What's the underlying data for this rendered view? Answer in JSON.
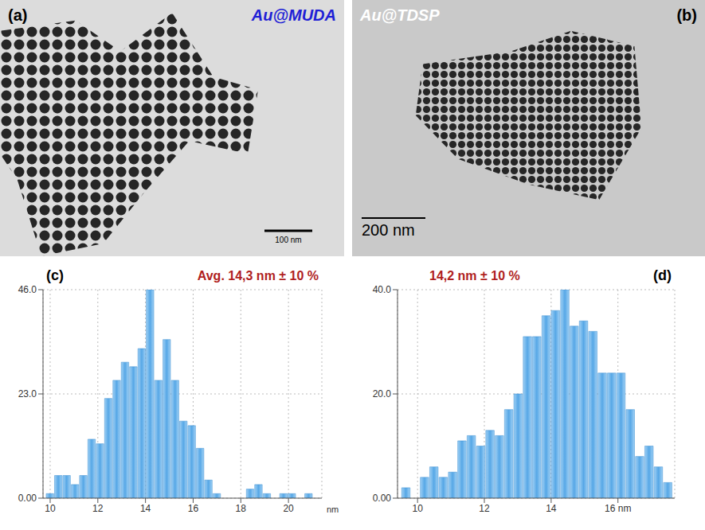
{
  "images": [
    {
      "panel": "(a)",
      "label": "Au@MUDA",
      "scale_bar": "100 nm"
    },
    {
      "panel": "(b)",
      "label": "Au@TDSP",
      "scale_bar": "200 nm"
    }
  ],
  "chart_data": [
    {
      "type": "histogram",
      "panel": "(c)",
      "annotation": "Avg. 14,3 nm ± 10 %",
      "x_label": "nm",
      "color": "#56a7e6",
      "grid": true,
      "bins": [
        9.8,
        10.15,
        10.5,
        10.85,
        11.2,
        11.55,
        11.9,
        12.25,
        12.6,
        12.95,
        13.3,
        13.65,
        14.0,
        14.35,
        14.7,
        15.05,
        15.4,
        15.75,
        16.1,
        16.45,
        16.8,
        17.15,
        17.5,
        17.85,
        18.2,
        18.55,
        18.9,
        19.25,
        19.6,
        19.95,
        20.3,
        20.65,
        21.0,
        21.35
      ],
      "values": [
        1,
        5,
        5,
        3,
        5,
        13,
        12,
        22,
        26,
        30,
        29,
        33,
        46,
        26,
        35,
        26,
        17,
        16,
        11,
        4,
        1,
        0,
        0,
        0,
        2,
        3,
        1,
        0,
        1,
        1,
        0,
        1,
        0
      ],
      "xlim": [
        9.7,
        21.4
      ],
      "xticks": [
        10,
        12,
        14,
        16,
        18,
        20
      ],
      "ylim": [
        0,
        46
      ],
      "yticks": [
        {
          "value": 0,
          "label": "0.00"
        },
        {
          "value": 23,
          "label": "23.0"
        },
        {
          "value": 46,
          "label": "46.0"
        }
      ]
    },
    {
      "type": "histogram",
      "panel": "(d)",
      "annotation": "14,2 nm ± 10 %",
      "color": "#56a7e6",
      "grid": true,
      "bins": [
        9.5,
        9.78,
        10.06,
        10.34,
        10.62,
        10.9,
        11.18,
        11.46,
        11.74,
        12.02,
        12.3,
        12.58,
        12.86,
        13.14,
        13.42,
        13.7,
        13.98,
        14.26,
        14.54,
        14.82,
        15.1,
        15.38,
        15.66,
        15.94,
        16.22,
        16.5,
        16.78,
        17.06,
        17.34,
        17.62
      ],
      "values": [
        2,
        0,
        4,
        6,
        4,
        5,
        11,
        12,
        10,
        13,
        12,
        17,
        20,
        31,
        31,
        35,
        36,
        40,
        33,
        34,
        32,
        24,
        24,
        24,
        17,
        8,
        10,
        6,
        3
      ],
      "xlim": [
        9.4,
        17.7
      ],
      "xticks": [
        10,
        12,
        14,
        {
          "value": 16,
          "label": "16 nm"
        }
      ],
      "ylim": [
        0,
        40
      ],
      "yticks": [
        {
          "value": 0,
          "label": "0.00"
        },
        {
          "value": 20,
          "label": "20.0"
        },
        {
          "value": 40,
          "label": "40.0"
        }
      ]
    }
  ]
}
